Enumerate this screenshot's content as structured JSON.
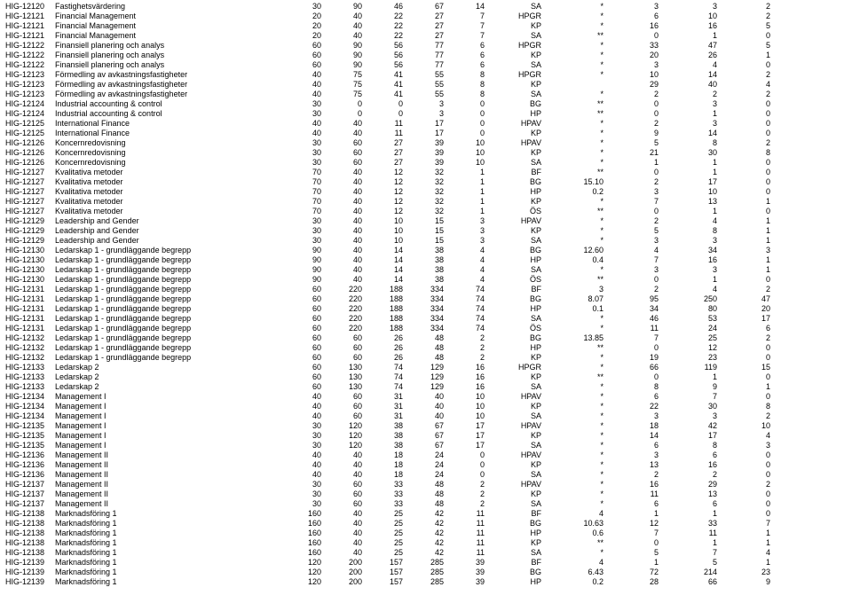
{
  "rows": [
    {
      "code": "HIG-12120",
      "name": "Fastighetsvärdering",
      "n1": "30",
      "n2": "90",
      "n3": "46",
      "n4": "67",
      "n5": "14",
      "gr": "SA",
      "star": "*",
      "n6": "3",
      "n7": "3",
      "n8": "2"
    },
    {
      "code": "HIG-12121",
      "name": "Financial Management",
      "n1": "20",
      "n2": "40",
      "n3": "22",
      "n4": "27",
      "n5": "7",
      "gr": "HPGR",
      "star": "*",
      "n6": "6",
      "n7": "10",
      "n8": "2"
    },
    {
      "code": "HIG-12121",
      "name": "Financial Management",
      "n1": "20",
      "n2": "40",
      "n3": "22",
      "n4": "27",
      "n5": "7",
      "gr": "KP",
      "star": "*",
      "n6": "16",
      "n7": "16",
      "n8": "5"
    },
    {
      "code": "HIG-12121",
      "name": "Financial Management",
      "n1": "20",
      "n2": "40",
      "n3": "22",
      "n4": "27",
      "n5": "7",
      "gr": "SA",
      "star": "**",
      "n6": "0",
      "n7": "1",
      "n8": "0"
    },
    {
      "code": "HIG-12122",
      "name": "Finansiell planering och analys",
      "n1": "60",
      "n2": "90",
      "n3": "56",
      "n4": "77",
      "n5": "6",
      "gr": "HPGR",
      "star": "*",
      "n6": "33",
      "n7": "47",
      "n8": "5"
    },
    {
      "code": "HIG-12122",
      "name": "Finansiell planering och analys",
      "n1": "60",
      "n2": "90",
      "n3": "56",
      "n4": "77",
      "n5": "6",
      "gr": "KP",
      "star": "*",
      "n6": "20",
      "n7": "26",
      "n8": "1"
    },
    {
      "code": "HIG-12122",
      "name": "Finansiell planering och analys",
      "n1": "60",
      "n2": "90",
      "n3": "56",
      "n4": "77",
      "n5": "6",
      "gr": "SA",
      "star": "*",
      "n6": "3",
      "n7": "4",
      "n8": "0"
    },
    {
      "code": "HIG-12123",
      "name": "Förmedling av avkastningsfastigheter",
      "n1": "40",
      "n2": "75",
      "n3": "41",
      "n4": "55",
      "n5": "8",
      "gr": "HPGR",
      "star": "*",
      "n6": "10",
      "n7": "14",
      "n8": "2"
    },
    {
      "code": "HIG-12123",
      "name": "Förmedling av avkastningsfastigheter",
      "n1": "40",
      "n2": "75",
      "n3": "41",
      "n4": "55",
      "n5": "8",
      "gr": "KP",
      "star": "",
      "n6": "29",
      "n7": "40",
      "n8": "4"
    },
    {
      "code": "HIG-12123",
      "name": "Förmedling av avkastningsfastigheter",
      "n1": "40",
      "n2": "75",
      "n3": "41",
      "n4": "55",
      "n5": "8",
      "gr": "SA",
      "star": "*",
      "n6": "2",
      "n7": "2",
      "n8": "2"
    },
    {
      "code": "HIG-12124",
      "name": "Industrial accounting & control",
      "n1": "30",
      "n2": "0",
      "n3": "0",
      "n4": "3",
      "n5": "0",
      "gr": "BG",
      "star": "**",
      "n6": "0",
      "n7": "3",
      "n8": "0"
    },
    {
      "code": "HIG-12124",
      "name": "Industrial accounting & control",
      "n1": "30",
      "n2": "0",
      "n3": "0",
      "n4": "3",
      "n5": "0",
      "gr": "HP",
      "star": "**",
      "n6": "0",
      "n7": "1",
      "n8": "0"
    },
    {
      "code": "HIG-12125",
      "name": "International Finance",
      "n1": "40",
      "n2": "40",
      "n3": "11",
      "n4": "17",
      "n5": "0",
      "gr": "HPAV",
      "star": "*",
      "n6": "2",
      "n7": "3",
      "n8": "0"
    },
    {
      "code": "HIG-12125",
      "name": "International Finance",
      "n1": "40",
      "n2": "40",
      "n3": "11",
      "n4": "17",
      "n5": "0",
      "gr": "KP",
      "star": "*",
      "n6": "9",
      "n7": "14",
      "n8": "0"
    },
    {
      "code": "HIG-12126",
      "name": "Koncernredovisning",
      "n1": "30",
      "n2": "60",
      "n3": "27",
      "n4": "39",
      "n5": "10",
      "gr": "HPAV",
      "star": "*",
      "n6": "5",
      "n7": "8",
      "n8": "2"
    },
    {
      "code": "HIG-12126",
      "name": "Koncernredovisning",
      "n1": "30",
      "n2": "60",
      "n3": "27",
      "n4": "39",
      "n5": "10",
      "gr": "KP",
      "star": "*",
      "n6": "21",
      "n7": "30",
      "n8": "8"
    },
    {
      "code": "HIG-12126",
      "name": "Koncernredovisning",
      "n1": "30",
      "n2": "60",
      "n3": "27",
      "n4": "39",
      "n5": "10",
      "gr": "SA",
      "star": "*",
      "n6": "1",
      "n7": "1",
      "n8": "0"
    },
    {
      "code": "HIG-12127",
      "name": "Kvalitativa metoder",
      "n1": "70",
      "n2": "40",
      "n3": "12",
      "n4": "32",
      "n5": "1",
      "gr": "BF",
      "star": "**",
      "n6": "0",
      "n7": "1",
      "n8": "0"
    },
    {
      "code": "HIG-12127",
      "name": "Kvalitativa metoder",
      "n1": "70",
      "n2": "40",
      "n3": "12",
      "n4": "32",
      "n5": "1",
      "gr": "BG",
      "star": "15.10",
      "n6": "2",
      "n7": "17",
      "n8": "0"
    },
    {
      "code": "HIG-12127",
      "name": "Kvalitativa metoder",
      "n1": "70",
      "n2": "40",
      "n3": "12",
      "n4": "32",
      "n5": "1",
      "gr": "HP",
      "star": "0.2",
      "n6": "3",
      "n7": "10",
      "n8": "0"
    },
    {
      "code": "HIG-12127",
      "name": "Kvalitativa metoder",
      "n1": "70",
      "n2": "40",
      "n3": "12",
      "n4": "32",
      "n5": "1",
      "gr": "KP",
      "star": "*",
      "n6": "7",
      "n7": "13",
      "n8": "1"
    },
    {
      "code": "HIG-12127",
      "name": "Kvalitativa metoder",
      "n1": "70",
      "n2": "40",
      "n3": "12",
      "n4": "32",
      "n5": "1",
      "gr": "ÖS",
      "star": "**",
      "n6": "0",
      "n7": "1",
      "n8": "0"
    },
    {
      "code": "HIG-12129",
      "name": "Leadership and Gender",
      "n1": "30",
      "n2": "40",
      "n3": "10",
      "n4": "15",
      "n5": "3",
      "gr": "HPAV",
      "star": "*",
      "n6": "2",
      "n7": "4",
      "n8": "1"
    },
    {
      "code": "HIG-12129",
      "name": "Leadership and Gender",
      "n1": "30",
      "n2": "40",
      "n3": "10",
      "n4": "15",
      "n5": "3",
      "gr": "KP",
      "star": "*",
      "n6": "5",
      "n7": "8",
      "n8": "1"
    },
    {
      "code": "HIG-12129",
      "name": "Leadership and Gender",
      "n1": "30",
      "n2": "40",
      "n3": "10",
      "n4": "15",
      "n5": "3",
      "gr": "SA",
      "star": "*",
      "n6": "3",
      "n7": "3",
      "n8": "1"
    },
    {
      "code": "HIG-12130",
      "name": "Ledarskap 1 - grundläggande begrepp",
      "n1": "90",
      "n2": "40",
      "n3": "14",
      "n4": "38",
      "n5": "4",
      "gr": "BG",
      "star": "12.60",
      "n6": "4",
      "n7": "34",
      "n8": "3"
    },
    {
      "code": "HIG-12130",
      "name": "Ledarskap 1 - grundläggande begrepp",
      "n1": "90",
      "n2": "40",
      "n3": "14",
      "n4": "38",
      "n5": "4",
      "gr": "HP",
      "star": "0.4",
      "n6": "7",
      "n7": "16",
      "n8": "1"
    },
    {
      "code": "HIG-12130",
      "name": "Ledarskap 1 - grundläggande begrepp",
      "n1": "90",
      "n2": "40",
      "n3": "14",
      "n4": "38",
      "n5": "4",
      "gr": "SA",
      "star": "*",
      "n6": "3",
      "n7": "3",
      "n8": "1"
    },
    {
      "code": "HIG-12130",
      "name": "Ledarskap 1 - grundläggande begrepp",
      "n1": "90",
      "n2": "40",
      "n3": "14",
      "n4": "38",
      "n5": "4",
      "gr": "ÖS",
      "star": "**",
      "n6": "0",
      "n7": "1",
      "n8": "0"
    },
    {
      "code": "HIG-12131",
      "name": "Ledarskap 1 - grundläggande begrepp",
      "n1": "60",
      "n2": "220",
      "n3": "188",
      "n4": "334",
      "n5": "74",
      "gr": "BF",
      "star": "3",
      "n6": "2",
      "n7": "4",
      "n8": "2"
    },
    {
      "code": "HIG-12131",
      "name": "Ledarskap 1 - grundläggande begrepp",
      "n1": "60",
      "n2": "220",
      "n3": "188",
      "n4": "334",
      "n5": "74",
      "gr": "BG",
      "star": "8.07",
      "n6": "95",
      "n7": "250",
      "n8": "47"
    },
    {
      "code": "HIG-12131",
      "name": "Ledarskap 1 - grundläggande begrepp",
      "n1": "60",
      "n2": "220",
      "n3": "188",
      "n4": "334",
      "n5": "74",
      "gr": "HP",
      "star": "0.1",
      "n6": "34",
      "n7": "80",
      "n8": "20"
    },
    {
      "code": "HIG-12131",
      "name": "Ledarskap 1 - grundläggande begrepp",
      "n1": "60",
      "n2": "220",
      "n3": "188",
      "n4": "334",
      "n5": "74",
      "gr": "SA",
      "star": "*",
      "n6": "46",
      "n7": "53",
      "n8": "17"
    },
    {
      "code": "HIG-12131",
      "name": "Ledarskap 1 - grundläggande begrepp",
      "n1": "60",
      "n2": "220",
      "n3": "188",
      "n4": "334",
      "n5": "74",
      "gr": "ÖS",
      "star": "*",
      "n6": "11",
      "n7": "24",
      "n8": "6"
    },
    {
      "code": "HIG-12132",
      "name": "Ledarskap 1 - grundläggande begrepp",
      "n1": "60",
      "n2": "60",
      "n3": "26",
      "n4": "48",
      "n5": "2",
      "gr": "BG",
      "star": "13.85",
      "n6": "7",
      "n7": "25",
      "n8": "2"
    },
    {
      "code": "HIG-12132",
      "name": "Ledarskap 1 - grundläggande begrepp",
      "n1": "60",
      "n2": "60",
      "n3": "26",
      "n4": "48",
      "n5": "2",
      "gr": "HP",
      "star": "**",
      "n6": "0",
      "n7": "12",
      "n8": "0"
    },
    {
      "code": "HIG-12132",
      "name": "Ledarskap 1 - grundläggande begrepp",
      "n1": "60",
      "n2": "60",
      "n3": "26",
      "n4": "48",
      "n5": "2",
      "gr": "KP",
      "star": "*",
      "n6": "19",
      "n7": "23",
      "n8": "0"
    },
    {
      "code": "HIG-12133",
      "name": "Ledarskap 2",
      "n1": "60",
      "n2": "130",
      "n3": "74",
      "n4": "129",
      "n5": "16",
      "gr": "HPGR",
      "star": "*",
      "n6": "66",
      "n7": "119",
      "n8": "15"
    },
    {
      "code": "HIG-12133",
      "name": "Ledarskap 2",
      "n1": "60",
      "n2": "130",
      "n3": "74",
      "n4": "129",
      "n5": "16",
      "gr": "KP",
      "star": "**",
      "n6": "0",
      "n7": "1",
      "n8": "0"
    },
    {
      "code": "HIG-12133",
      "name": "Ledarskap 2",
      "n1": "60",
      "n2": "130",
      "n3": "74",
      "n4": "129",
      "n5": "16",
      "gr": "SA",
      "star": "*",
      "n6": "8",
      "n7": "9",
      "n8": "1"
    },
    {
      "code": "HIG-12134",
      "name": "Management I",
      "n1": "40",
      "n2": "60",
      "n3": "31",
      "n4": "40",
      "n5": "10",
      "gr": "HPAV",
      "star": "*",
      "n6": "6",
      "n7": "7",
      "n8": "0"
    },
    {
      "code": "HIG-12134",
      "name": "Management I",
      "n1": "40",
      "n2": "60",
      "n3": "31",
      "n4": "40",
      "n5": "10",
      "gr": "KP",
      "star": "*",
      "n6": "22",
      "n7": "30",
      "n8": "8"
    },
    {
      "code": "HIG-12134",
      "name": "Management I",
      "n1": "40",
      "n2": "60",
      "n3": "31",
      "n4": "40",
      "n5": "10",
      "gr": "SA",
      "star": "*",
      "n6": "3",
      "n7": "3",
      "n8": "2"
    },
    {
      "code": "HIG-12135",
      "name": "Management I",
      "n1": "30",
      "n2": "120",
      "n3": "38",
      "n4": "67",
      "n5": "17",
      "gr": "HPAV",
      "star": "*",
      "n6": "18",
      "n7": "42",
      "n8": "10"
    },
    {
      "code": "HIG-12135",
      "name": "Management I",
      "n1": "30",
      "n2": "120",
      "n3": "38",
      "n4": "67",
      "n5": "17",
      "gr": "KP",
      "star": "*",
      "n6": "14",
      "n7": "17",
      "n8": "4"
    },
    {
      "code": "HIG-12135",
      "name": "Management I",
      "n1": "30",
      "n2": "120",
      "n3": "38",
      "n4": "67",
      "n5": "17",
      "gr": "SA",
      "star": "*",
      "n6": "6",
      "n7": "8",
      "n8": "3"
    },
    {
      "code": "HIG-12136",
      "name": "Management II",
      "n1": "40",
      "n2": "40",
      "n3": "18",
      "n4": "24",
      "n5": "0",
      "gr": "HPAV",
      "star": "*",
      "n6": "3",
      "n7": "6",
      "n8": "0"
    },
    {
      "code": "HIG-12136",
      "name": "Management II",
      "n1": "40",
      "n2": "40",
      "n3": "18",
      "n4": "24",
      "n5": "0",
      "gr": "KP",
      "star": "*",
      "n6": "13",
      "n7": "16",
      "n8": "0"
    },
    {
      "code": "HIG-12136",
      "name": "Management II",
      "n1": "40",
      "n2": "40",
      "n3": "18",
      "n4": "24",
      "n5": "0",
      "gr": "SA",
      "star": "*",
      "n6": "2",
      "n7": "2",
      "n8": "0"
    },
    {
      "code": "HIG-12137",
      "name": "Management II",
      "n1": "30",
      "n2": "60",
      "n3": "33",
      "n4": "48",
      "n5": "2",
      "gr": "HPAV",
      "star": "*",
      "n6": "16",
      "n7": "29",
      "n8": "2"
    },
    {
      "code": "HIG-12137",
      "name": "Management II",
      "n1": "30",
      "n2": "60",
      "n3": "33",
      "n4": "48",
      "n5": "2",
      "gr": "KP",
      "star": "*",
      "n6": "11",
      "n7": "13",
      "n8": "0"
    },
    {
      "code": "HIG-12137",
      "name": "Management II",
      "n1": "30",
      "n2": "60",
      "n3": "33",
      "n4": "48",
      "n5": "2",
      "gr": "SA",
      "star": "*",
      "n6": "6",
      "n7": "6",
      "n8": "0"
    },
    {
      "code": "HIG-12138",
      "name": "Marknadsföring 1",
      "n1": "160",
      "n2": "40",
      "n3": "25",
      "n4": "42",
      "n5": "11",
      "gr": "BF",
      "star": "4",
      "n6": "1",
      "n7": "1",
      "n8": "0"
    },
    {
      "code": "HIG-12138",
      "name": "Marknadsföring 1",
      "n1": "160",
      "n2": "40",
      "n3": "25",
      "n4": "42",
      "n5": "11",
      "gr": "BG",
      "star": "10.63",
      "n6": "12",
      "n7": "33",
      "n8": "7"
    },
    {
      "code": "HIG-12138",
      "name": "Marknadsföring 1",
      "n1": "160",
      "n2": "40",
      "n3": "25",
      "n4": "42",
      "n5": "11",
      "gr": "HP",
      "star": "0.6",
      "n6": "7",
      "n7": "11",
      "n8": "1"
    },
    {
      "code": "HIG-12138",
      "name": "Marknadsföring 1",
      "n1": "160",
      "n2": "40",
      "n3": "25",
      "n4": "42",
      "n5": "11",
      "gr": "KP",
      "star": "**",
      "n6": "0",
      "n7": "1",
      "n8": "1"
    },
    {
      "code": "HIG-12138",
      "name": "Marknadsföring 1",
      "n1": "160",
      "n2": "40",
      "n3": "25",
      "n4": "42",
      "n5": "11",
      "gr": "SA",
      "star": "*",
      "n6": "5",
      "n7": "7",
      "n8": "4"
    },
    {
      "code": "HIG-12139",
      "name": "Marknadsföring 1",
      "n1": "120",
      "n2": "200",
      "n3": "157",
      "n4": "285",
      "n5": "39",
      "gr": "BF",
      "star": "4",
      "n6": "1",
      "n7": "5",
      "n8": "1"
    },
    {
      "code": "HIG-12139",
      "name": "Marknadsföring 1",
      "n1": "120",
      "n2": "200",
      "n3": "157",
      "n4": "285",
      "n5": "39",
      "gr": "BG",
      "star": "6.43",
      "n6": "72",
      "n7": "214",
      "n8": "23"
    },
    {
      "code": "HIG-12139",
      "name": "Marknadsföring 1",
      "n1": "120",
      "n2": "200",
      "n3": "157",
      "n4": "285",
      "n5": "39",
      "gr": "HP",
      "star": "0.2",
      "n6": "28",
      "n7": "66",
      "n8": "9"
    }
  ]
}
